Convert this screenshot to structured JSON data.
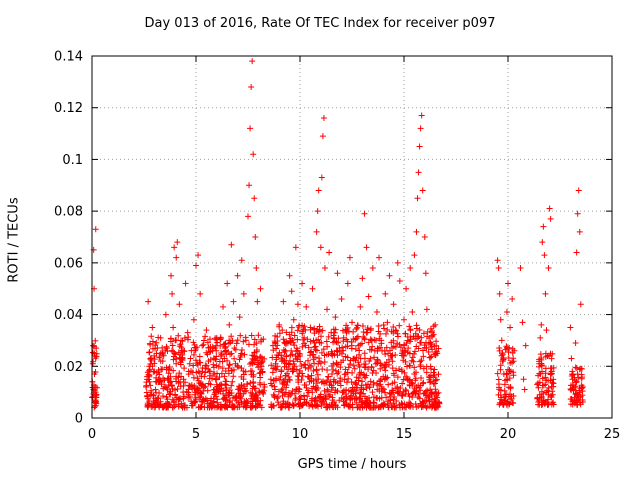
{
  "chart_data": {
    "type": "scatter",
    "title": "Day 013 of 2016, Rate Of TEC Index for receiver p097",
    "xlabel": "GPS time / hours",
    "ylabel": "ROTI / TECUs",
    "xlim": [
      0,
      25
    ],
    "ylim": [
      0,
      0.14
    ],
    "xticks": [
      0,
      5,
      10,
      15,
      20,
      25
    ],
    "xtick_labels": [
      "0",
      "5",
      "10",
      "15",
      "20",
      "25"
    ],
    "yticks": [
      0,
      0.02,
      0.04,
      0.06,
      0.08,
      0.1,
      0.12,
      0.14
    ],
    "ytick_labels": [
      "0",
      "0.02",
      "0.04",
      "0.06",
      "0.08",
      "0.1",
      "0.12",
      "0.14"
    ],
    "grid": true,
    "marker": "+",
    "color": "#ff0000",
    "series": [
      {
        "points": [
          [
            0.0,
            0.008
          ],
          [
            0.02,
            0.014
          ],
          [
            0.04,
            0.021
          ],
          [
            0.05,
            0.028
          ],
          [
            0.07,
            0.011
          ],
          [
            0.08,
            0.065
          ],
          [
            0.1,
            0.05
          ],
          [
            0.12,
            0.017
          ],
          [
            0.14,
            0.006
          ],
          [
            0.16,
            0.012
          ],
          [
            0.18,
            0.073
          ],
          [
            0.2,
            0.027
          ],
          [
            0.22,
            0.009
          ],
          [
            2.6,
            0.012
          ],
          [
            2.65,
            0.016
          ],
          [
            2.7,
            0.045
          ],
          [
            2.75,
            0.02
          ],
          [
            2.8,
            0.009
          ],
          [
            2.9,
            0.035
          ],
          [
            3.0,
            0.018
          ],
          [
            3.05,
            0.011
          ],
          [
            3.1,
            0.025
          ],
          [
            3.2,
            0.015
          ],
          [
            3.3,
            0.031
          ],
          [
            3.4,
            0.022
          ],
          [
            3.5,
            0.012
          ],
          [
            3.55,
            0.04
          ],
          [
            3.6,
            0.027
          ],
          [
            3.7,
            0.019
          ],
          [
            3.8,
            0.055
          ],
          [
            3.85,
            0.048
          ],
          [
            3.9,
            0.035
          ],
          [
            3.95,
            0.066
          ],
          [
            4.0,
            0.03
          ],
          [
            4.05,
            0.062
          ],
          [
            4.1,
            0.068
          ],
          [
            4.2,
            0.044
          ],
          [
            4.3,
            0.026
          ],
          [
            4.4,
            0.015
          ],
          [
            4.5,
            0.052
          ],
          [
            4.6,
            0.033
          ],
          [
            4.7,
            0.021
          ],
          [
            4.8,
            0.012
          ],
          [
            4.9,
            0.038
          ],
          [
            5.0,
            0.059
          ],
          [
            5.1,
            0.063
          ],
          [
            5.2,
            0.048
          ],
          [
            5.3,
            0.028
          ],
          [
            5.4,
            0.016
          ],
          [
            5.5,
            0.034
          ],
          [
            5.6,
            0.022
          ],
          [
            5.7,
            0.013
          ],
          [
            5.8,
            0.026
          ],
          [
            5.9,
            0.017
          ],
          [
            6.0,
            0.031
          ],
          [
            6.1,
            0.011
          ],
          [
            6.2,
            0.024
          ],
          [
            6.3,
            0.043
          ],
          [
            6.4,
            0.027
          ],
          [
            6.5,
            0.052
          ],
          [
            6.6,
            0.036
          ],
          [
            6.7,
            0.067
          ],
          [
            6.8,
            0.045
          ],
          [
            6.9,
            0.021
          ],
          [
            7.0,
            0.055
          ],
          [
            7.1,
            0.039
          ],
          [
            7.2,
            0.061
          ],
          [
            7.3,
            0.048
          ],
          [
            7.4,
            0.03
          ],
          [
            7.5,
            0.078
          ],
          [
            7.55,
            0.09
          ],
          [
            7.6,
            0.112
          ],
          [
            7.65,
            0.128
          ],
          [
            7.7,
            0.138
          ],
          [
            7.75,
            0.102
          ],
          [
            7.8,
            0.085
          ],
          [
            7.85,
            0.07
          ],
          [
            7.9,
            0.058
          ],
          [
            7.95,
            0.045
          ],
          [
            8.0,
            0.032
          ],
          [
            8.1,
            0.05
          ],
          [
            8.2,
            0.022
          ],
          [
            8.3,
            0.012
          ],
          [
            8.6,
            0.015
          ],
          [
            8.7,
            0.028
          ],
          [
            8.8,
            0.011
          ],
          [
            8.9,
            0.02
          ],
          [
            9.0,
            0.036
          ],
          [
            9.1,
            0.018
          ],
          [
            9.2,
            0.045
          ],
          [
            9.3,
            0.026
          ],
          [
            9.4,
            0.014
          ],
          [
            9.5,
            0.055
          ],
          [
            9.6,
            0.049
          ],
          [
            9.7,
            0.038
          ],
          [
            9.8,
            0.066
          ],
          [
            9.9,
            0.044
          ],
          [
            10.0,
            0.024
          ],
          [
            10.1,
            0.052
          ],
          [
            10.2,
            0.031
          ],
          [
            10.3,
            0.043
          ],
          [
            10.4,
            0.019
          ],
          [
            10.5,
            0.035
          ],
          [
            10.6,
            0.05
          ],
          [
            10.7,
            0.029
          ],
          [
            10.8,
            0.072
          ],
          [
            10.85,
            0.08
          ],
          [
            10.9,
            0.088
          ],
          [
            11.0,
            0.066
          ],
          [
            11.05,
            0.093
          ],
          [
            11.1,
            0.109
          ],
          [
            11.15,
            0.116
          ],
          [
            11.2,
            0.058
          ],
          [
            11.3,
            0.042
          ],
          [
            11.4,
            0.064
          ],
          [
            11.5,
            0.033
          ],
          [
            11.6,
            0.021
          ],
          [
            11.7,
            0.039
          ],
          [
            11.8,
            0.056
          ],
          [
            11.9,
            0.027
          ],
          [
            12.0,
            0.046
          ],
          [
            12.1,
            0.031
          ],
          [
            12.2,
            0.017
          ],
          [
            12.3,
            0.052
          ],
          [
            12.4,
            0.062
          ],
          [
            12.5,
            0.037
          ],
          [
            12.6,
            0.023
          ],
          [
            12.7,
            0.013
          ],
          [
            12.8,
            0.028
          ],
          [
            12.9,
            0.043
          ],
          [
            13.0,
            0.054
          ],
          [
            13.1,
            0.079
          ],
          [
            13.2,
            0.066
          ],
          [
            13.3,
            0.047
          ],
          [
            13.4,
            0.034
          ],
          [
            13.5,
            0.058
          ],
          [
            13.6,
            0.026
          ],
          [
            13.7,
            0.041
          ],
          [
            13.8,
            0.062
          ],
          [
            13.9,
            0.03
          ],
          [
            14.0,
            0.016
          ],
          [
            14.1,
            0.048
          ],
          [
            14.2,
            0.037
          ],
          [
            14.3,
            0.055
          ],
          [
            14.4,
            0.024
          ],
          [
            14.5,
            0.044
          ],
          [
            14.6,
            0.034
          ],
          [
            14.7,
            0.06
          ],
          [
            14.8,
            0.053
          ],
          [
            14.9,
            0.018
          ],
          [
            15.0,
            0.038
          ],
          [
            15.1,
            0.05
          ],
          [
            15.2,
            0.027
          ],
          [
            15.3,
            0.058
          ],
          [
            15.4,
            0.041
          ],
          [
            15.5,
            0.063
          ],
          [
            15.6,
            0.072
          ],
          [
            15.65,
            0.085
          ],
          [
            15.7,
            0.095
          ],
          [
            15.75,
            0.105
          ],
          [
            15.8,
            0.112
          ],
          [
            15.85,
            0.117
          ],
          [
            15.9,
            0.088
          ],
          [
            16.0,
            0.07
          ],
          [
            16.05,
            0.056
          ],
          [
            16.1,
            0.042
          ],
          [
            16.2,
            0.029
          ],
          [
            16.3,
            0.019
          ],
          [
            16.5,
            0.036
          ],
          [
            16.6,
            0.025
          ],
          [
            19.5,
            0.061
          ],
          [
            19.55,
            0.058
          ],
          [
            19.6,
            0.048
          ],
          [
            19.65,
            0.038
          ],
          [
            19.7,
            0.03
          ],
          [
            19.75,
            0.022
          ],
          [
            19.8,
            0.017
          ],
          [
            19.85,
            0.013
          ],
          [
            19.9,
            0.009
          ],
          [
            19.95,
            0.041
          ],
          [
            20.0,
            0.052
          ],
          [
            20.1,
            0.035
          ],
          [
            20.2,
            0.046
          ],
          [
            20.3,
            0.026
          ],
          [
            20.6,
            0.058
          ],
          [
            20.7,
            0.037
          ],
          [
            20.75,
            0.015
          ],
          [
            20.8,
            0.011
          ],
          [
            20.85,
            0.028
          ],
          [
            21.4,
            0.013
          ],
          [
            21.5,
            0.021
          ],
          [
            21.55,
            0.031
          ],
          [
            21.6,
            0.036
          ],
          [
            21.65,
            0.068
          ],
          [
            21.7,
            0.074
          ],
          [
            21.75,
            0.063
          ],
          [
            21.8,
            0.048
          ],
          [
            21.85,
            0.034
          ],
          [
            21.9,
            0.024
          ],
          [
            21.95,
            0.058
          ],
          [
            22.0,
            0.081
          ],
          [
            22.05,
            0.077
          ],
          [
            22.1,
            0.018
          ],
          [
            22.15,
            0.009
          ],
          [
            23.0,
            0.035
          ],
          [
            23.05,
            0.023
          ],
          [
            23.1,
            0.015
          ],
          [
            23.15,
            0.011
          ],
          [
            23.2,
            0.008
          ],
          [
            23.25,
            0.029
          ],
          [
            23.3,
            0.064
          ],
          [
            23.35,
            0.079
          ],
          [
            23.4,
            0.088
          ],
          [
            23.45,
            0.072
          ],
          [
            23.5,
            0.044
          ],
          [
            23.55,
            0.019
          ],
          [
            23.6,
            0.012
          ]
        ]
      }
    ],
    "bands": [
      {
        "x": [
          0.0,
          0.25
        ],
        "y": [
          0.004,
          0.03
        ],
        "n": 30
      },
      {
        "x": [
          2.6,
          8.3
        ],
        "y": [
          0.004,
          0.032
        ],
        "n": 650
      },
      {
        "x": [
          8.6,
          16.7
        ],
        "y": [
          0.004,
          0.036
        ],
        "n": 950
      },
      {
        "x": [
          19.5,
          20.3
        ],
        "y": [
          0.005,
          0.028
        ],
        "n": 80
      },
      {
        "x": [
          21.4,
          22.2
        ],
        "y": [
          0.005,
          0.025
        ],
        "n": 80
      },
      {
        "x": [
          23.0,
          23.6
        ],
        "y": [
          0.005,
          0.02
        ],
        "n": 60
      }
    ]
  }
}
